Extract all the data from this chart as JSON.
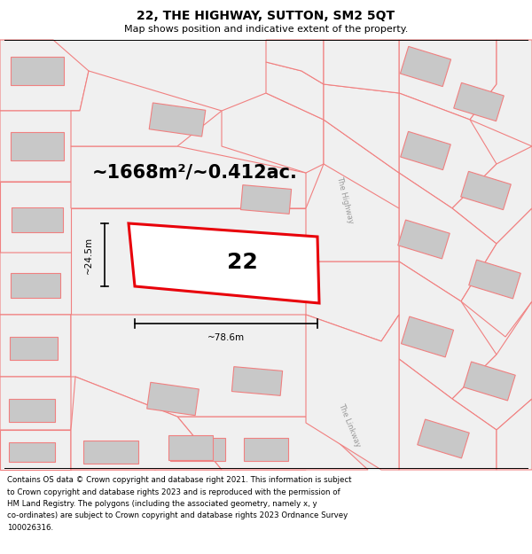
{
  "title_line1": "22, THE HIGHWAY, SUTTON, SM2 5QT",
  "title_line2": "Map shows position and indicative extent of the property.",
  "area_text": "~1668m²/~0.412ac.",
  "number_label": "22",
  "dim_width": "~78.6m",
  "dim_height": "~24.5m",
  "background_color": "#ffffff",
  "map_bg": "#f2f2f2",
  "polygon_color_red": "#e8000a",
  "polygon_color_pink": "#f08080",
  "building_color": "#c8c8c8",
  "road_label1": "The Highway",
  "road_label2": "The Linkway",
  "footer_lines": [
    "Contains OS data © Crown copyright and database right 2021. This information is subject",
    "to Crown copyright and database rights 2023 and is reproduced with the permission of",
    "HM Land Registry. The polygons (including the associated geometry, namely x, y",
    "co-ordinates) are subject to Crown copyright and database rights 2023 Ordnance Survey",
    "100026316."
  ],
  "title_fontsize": 10,
  "subtitle_fontsize": 8,
  "area_fontsize": 15,
  "label_fontsize": 18,
  "dim_fontsize": 7.5,
  "footer_fontsize": 6.2,
  "road_fontsize": 6
}
